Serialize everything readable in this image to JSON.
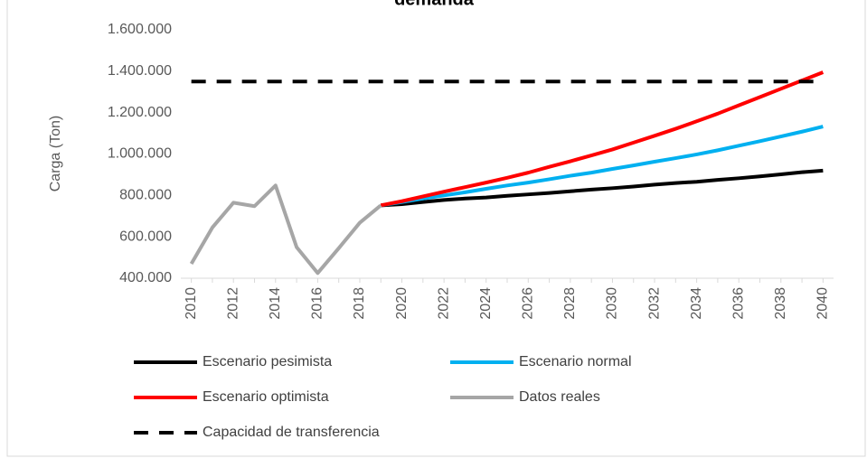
{
  "chart_data": {
    "type": "line",
    "title": "demanda",
    "ylabel": "Carga (Ton)",
    "categories": [
      "2010",
      null,
      "2012",
      null,
      "2014",
      null,
      "2016",
      null,
      "2018",
      null,
      "2020",
      null,
      "2022",
      null,
      "2024",
      null,
      "2026",
      null,
      "2028",
      null,
      "2030",
      null,
      "2032",
      null,
      "2034",
      null,
      "2036",
      null,
      "2038",
      null,
      "2040"
    ],
    "ylim": [
      400000,
      1600000
    ],
    "yticks": [
      {
        "value": 400000,
        "label": "400.000"
      },
      {
        "value": 600000,
        "label": "600.000"
      },
      {
        "value": 800000,
        "label": "800.000"
      },
      {
        "value": 1000000,
        "label": "1.000.000"
      },
      {
        "value": 1200000,
        "label": "1.200.000"
      },
      {
        "value": 1400000,
        "label": "1.400.000"
      },
      {
        "value": 1600000,
        "label": "1.600.000"
      }
    ],
    "grid": false,
    "series": [
      {
        "name": "Escenario pesimista",
        "color": "#000000",
        "values": [
          null,
          null,
          null,
          null,
          null,
          null,
          null,
          null,
          null,
          752000,
          758000,
          768000,
          778000,
          785000,
          790000,
          798000,
          805000,
          812000,
          820000,
          828000,
          835000,
          843000,
          852000,
          860000,
          866000,
          875000,
          883000,
          892000,
          902000,
          912000,
          920000
        ]
      },
      {
        "name": "Escenario normal",
        "color": "#00b0f0",
        "values": [
          null,
          null,
          null,
          null,
          null,
          null,
          null,
          null,
          null,
          752000,
          768000,
          785000,
          800000,
          815000,
          832000,
          848000,
          862000,
          878000,
          895000,
          910000,
          928000,
          945000,
          963000,
          980000,
          998000,
          1018000,
          1040000,
          1062000,
          1085000,
          1108000,
          1133000
        ]
      },
      {
        "name": "Escenario optimista",
        "color": "#ff0000",
        "values": [
          null,
          null,
          null,
          null,
          null,
          null,
          null,
          null,
          null,
          752000,
          772000,
          795000,
          818000,
          840000,
          862000,
          885000,
          910000,
          938000,
          965000,
          993000,
          1022000,
          1055000,
          1088000,
          1122000,
          1158000,
          1195000,
          1235000,
          1275000,
          1315000,
          1355000,
          1395000
        ]
      },
      {
        "name": "Datos reales",
        "color": "#a6a6a6",
        "values": [
          470000,
          645000,
          765000,
          748000,
          848000,
          550000,
          425000,
          545000,
          668000,
          752000,
          null,
          null,
          null,
          null,
          null,
          null,
          null,
          null,
          null,
          null,
          null,
          null,
          null,
          null,
          null,
          null,
          null,
          null,
          null,
          null,
          null
        ]
      },
      {
        "name": "Capacidad de transferencia",
        "color": "#000000",
        "dashed": true,
        "values": [
          1350000,
          1350000,
          1350000,
          1350000,
          1350000,
          1350000,
          1350000,
          1350000,
          1350000,
          1350000,
          1350000,
          1350000,
          1350000,
          1350000,
          1350000,
          1350000,
          1350000,
          1350000,
          1350000,
          1350000,
          1350000,
          1350000,
          1350000,
          1350000,
          1350000,
          1350000,
          1350000,
          1350000,
          1350000,
          1350000,
          1350000
        ]
      }
    ]
  }
}
